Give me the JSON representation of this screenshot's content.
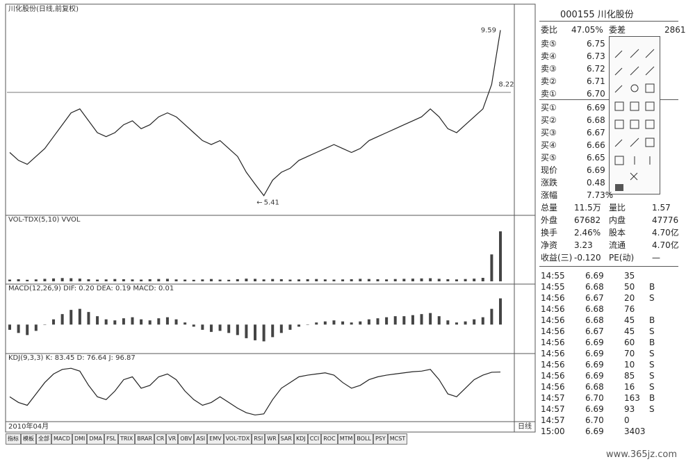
{
  "chart": {
    "title": "川化股份(日线,前复权)",
    "close": [
      6.5,
      6.3,
      6.2,
      6.4,
      6.6,
      6.9,
      7.2,
      7.5,
      7.6,
      7.3,
      7.0,
      6.9,
      7.0,
      7.2,
      7.3,
      7.1,
      7.2,
      7.4,
      7.5,
      7.4,
      7.2,
      7.0,
      6.8,
      6.7,
      6.8,
      6.6,
      6.4,
      6.0,
      5.7,
      5.41,
      5.8,
      6.0,
      6.1,
      6.3,
      6.4,
      6.5,
      6.6,
      6.7,
      6.6,
      6.5,
      6.6,
      6.8,
      6.9,
      7.0,
      7.1,
      7.2,
      7.3,
      7.4,
      7.6,
      7.4,
      7.1,
      7.0,
      7.2,
      7.4,
      7.6,
      8.22,
      9.59
    ],
    "price_ylim": [
      5.0,
      10.0
    ],
    "volume_label": "VOL-TDX(5,10) VVOL",
    "volume": [
      900,
      1100,
      800,
      1000,
      1300,
      1500,
      1700,
      1600,
      1400,
      1100,
      900,
      1000,
      1200,
      1100,
      1000,
      900,
      1100,
      1200,
      1300,
      1000,
      900,
      800,
      1000,
      1200,
      900,
      800,
      1100,
      1400,
      1300,
      1000,
      1200,
      1100,
      900,
      1000,
      1100,
      1200,
      1000,
      900,
      1000,
      1100,
      1300,
      1200,
      1100,
      1000,
      1200,
      1300,
      1400,
      1500,
      1600,
      1300,
      1100,
      1000,
      1200,
      1400,
      1800,
      14000,
      26000
    ],
    "volume_ylim": [
      0,
      30000
    ],
    "macd_label": "MACD(12,26,9) DIF: 0.20 DEA: 0.19 MACD: 0.01",
    "macd": [
      -0.05,
      -0.08,
      -0.1,
      -0.06,
      0.0,
      0.05,
      0.1,
      0.14,
      0.15,
      0.12,
      0.08,
      0.05,
      0.04,
      0.06,
      0.07,
      0.05,
      0.04,
      0.06,
      0.07,
      0.05,
      0.02,
      -0.02,
      -0.05,
      -0.07,
      -0.06,
      -0.08,
      -0.1,
      -0.13,
      -0.15,
      -0.16,
      -0.12,
      -0.08,
      -0.05,
      -0.02,
      0.0,
      0.02,
      0.03,
      0.04,
      0.03,
      0.02,
      0.03,
      0.05,
      0.06,
      0.07,
      0.08,
      0.08,
      0.09,
      0.1,
      0.11,
      0.08,
      0.04,
      0.02,
      0.03,
      0.05,
      0.07,
      0.15,
      0.25
    ],
    "macd_ylim": [
      -0.25,
      0.3
    ],
    "kdj_label": "KDJ(9,3,3) K: 83.45 D: 76.64 J: 96.87",
    "kdj_k": [
      40,
      30,
      25,
      45,
      65,
      80,
      88,
      90,
      85,
      60,
      40,
      35,
      50,
      70,
      75,
      55,
      60,
      75,
      80,
      70,
      50,
      35,
      25,
      30,
      40,
      30,
      20,
      12,
      8,
      10,
      35,
      55,
      65,
      75,
      78,
      80,
      82,
      78,
      65,
      55,
      60,
      70,
      75,
      78,
      80,
      82,
      84,
      85,
      88,
      70,
      45,
      40,
      55,
      70,
      78,
      83,
      83.45
    ],
    "kdj_ylim": [
      0,
      100
    ],
    "date": "2010年04月",
    "period": "日线"
  },
  "tabs": [
    "指标",
    "模板",
    "全部",
    "MACD",
    "DMI",
    "DMA",
    "FSL",
    "TRIX",
    "BRAR",
    "CR",
    "VR",
    "OBV",
    "ASI",
    "EMV",
    "VOL-TDX",
    "RSI",
    "WR",
    "SAR",
    "KDJ",
    "CCI",
    "ROC",
    "MTM",
    "BOLL",
    "PSY",
    "MCST"
  ],
  "panel": {
    "code": "000155",
    "name": "川化股份",
    "top": [
      "委比",
      "47.05%",
      "委差",
      "2861"
    ],
    "sells": [
      [
        "卖⑤",
        "6.75"
      ],
      [
        "卖④",
        "6.73"
      ],
      [
        "卖③",
        "6.72"
      ],
      [
        "卖②",
        "6.71"
      ],
      [
        "卖①",
        "6.70"
      ]
    ],
    "buys": [
      [
        "买①",
        "6.69"
      ],
      [
        "买②",
        "6.68"
      ],
      [
        "买③",
        "6.67"
      ],
      [
        "买④",
        "6.66"
      ],
      [
        "买⑤",
        "6.65"
      ]
    ],
    "singles": [
      [
        "现价",
        "6.69"
      ],
      [
        "涨跌",
        "0.48"
      ],
      [
        "涨幅",
        "7.73%"
      ]
    ],
    "pairs": [
      [
        "总量",
        "11.5万",
        "量比",
        "1.57"
      ],
      [
        "外盘",
        "67682",
        "内盘",
        "47776"
      ],
      [
        "换手",
        "2.46%",
        "股本",
        "4.70亿"
      ],
      [
        "净资",
        "3.23",
        "流通",
        "4.70亿"
      ],
      [
        "收益(三)",
        "-0.120",
        "PE(动)",
        "—"
      ]
    ],
    "ticks": [
      [
        "14:55",
        "6.69",
        "35",
        ""
      ],
      [
        "14:55",
        "6.68",
        "50",
        "B"
      ],
      [
        "14:56",
        "6.67",
        "20",
        "S"
      ],
      [
        "14:56",
        "6.68",
        "76",
        ""
      ],
      [
        "14:56",
        "6.68",
        "45",
        "B"
      ],
      [
        "14:56",
        "6.67",
        "45",
        "S"
      ],
      [
        "14:56",
        "6.69",
        "60",
        "B"
      ],
      [
        "14:56",
        "6.69",
        "70",
        "S"
      ],
      [
        "14:56",
        "6.69",
        "10",
        "S"
      ],
      [
        "14:56",
        "6.69",
        "85",
        "S"
      ],
      [
        "14:56",
        "6.68",
        "16",
        "S"
      ],
      [
        "14:57",
        "6.70",
        "163",
        "B"
      ],
      [
        "14:57",
        "6.69",
        "93",
        "S"
      ],
      [
        "14:57",
        "6.70",
        "0",
        ""
      ],
      [
        "15:00",
        "6.69",
        "3403",
        ""
      ]
    ]
  },
  "watermark": "www.365jz.com"
}
